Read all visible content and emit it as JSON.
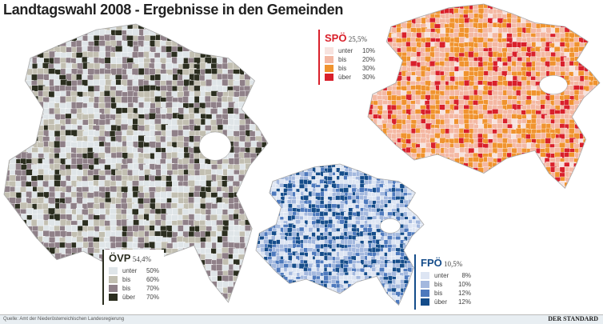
{
  "title": "Landtagswahl 2008 - Ergebnisse in den Gemeinden",
  "maps": [
    {
      "party": "ÖVP",
      "result": "54,4%",
      "color": "#2b2e1f",
      "legend": [
        {
          "qualifier": "unter",
          "threshold": "50%",
          "color": "#dfe5e8"
        },
        {
          "qualifier": "bis",
          "threshold": "60%",
          "color": "#c2bfb1"
        },
        {
          "qualifier": "bis",
          "threshold": "70%",
          "color": "#8f8088"
        },
        {
          "qualifier": "über",
          "threshold": "70%",
          "color": "#2b2e1f"
        }
      ]
    },
    {
      "party": "SPÖ",
      "result": "25,5%",
      "color": "#d9202b",
      "legend": [
        {
          "qualifier": "unter",
          "threshold": "10%",
          "color": "#f7e3df"
        },
        {
          "qualifier": "bis",
          "threshold": "20%",
          "color": "#f4b8a3"
        },
        {
          "qualifier": "bis",
          "threshold": "30%",
          "color": "#f0932e"
        },
        {
          "qualifier": "über",
          "threshold": "30%",
          "color": "#d9202b"
        }
      ]
    },
    {
      "party": "FPÖ",
      "result": "10,5%",
      "color": "#144c8a",
      "legend": [
        {
          "qualifier": "unter",
          "threshold": "8%",
          "color": "#dde5f3"
        },
        {
          "qualifier": "bis",
          "threshold": "10%",
          "color": "#a3b8de"
        },
        {
          "qualifier": "bis",
          "threshold": "12%",
          "color": "#4d79bd"
        },
        {
          "qualifier": "über",
          "threshold": "12%",
          "color": "#144c8a"
        }
      ]
    }
  ],
  "source": "Quelle: Amt der Niederösterreichischen Landesregierung",
  "brand": "DER STANDARD"
}
